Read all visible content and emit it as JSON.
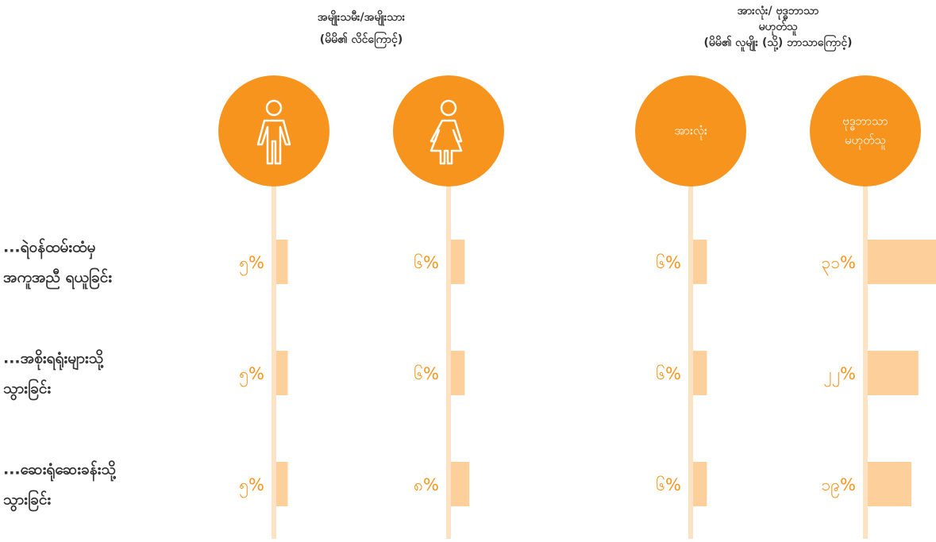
{
  "chart_data": {
    "type": "bar",
    "groups": [
      {
        "title": [
          "အမျိုးသမီး/အမျိုးသား",
          "(မိမိ၏ လိင်ကြောင့်)"
        ]
      },
      {
        "title": [
          "အားလုံး/ ဗုဒ္ဓဘာသာ",
          "မဟုတ်သူ",
          "(မိမိ၏ လူမျိုး (သို့) ဘာသာကြောင့်)"
        ]
      }
    ],
    "categories": [
      [
        "...ရဲဝန်ထမ်းထံမှ",
        "အကူအညီ ရယူခြင်း"
      ],
      [
        "...အစိုးရရုံးများသို့",
        "သွားခြင်း"
      ],
      [
        "...ဆေးရုံဆေးခန်းသို့",
        "သွားခြင်း"
      ]
    ],
    "color": "#fdd09b",
    "series": [
      {
        "values": [
          5,
          5,
          5
        ],
        "value_labels": [
          "၅%",
          "၅%",
          "၅%"
        ]
      },
      {
        "values": [
          6,
          6,
          8
        ],
        "value_labels": [
          "၆%",
          "၆%",
          "၈%"
        ]
      },
      {
        "name": [
          "အားလုံး"
        ],
        "values": [
          6,
          6,
          6
        ],
        "value_labels": [
          "၆%",
          "၆%",
          "၆%"
        ]
      },
      {
        "name": [
          "ဗုဒ္ဓဘာသာ",
          "မဟုတ်သူ"
        ],
        "values": [
          31,
          22,
          19
        ],
        "value_labels": [
          "၃၁%",
          "၂၂%",
          "၁၉%"
        ]
      }
    ]
  }
}
